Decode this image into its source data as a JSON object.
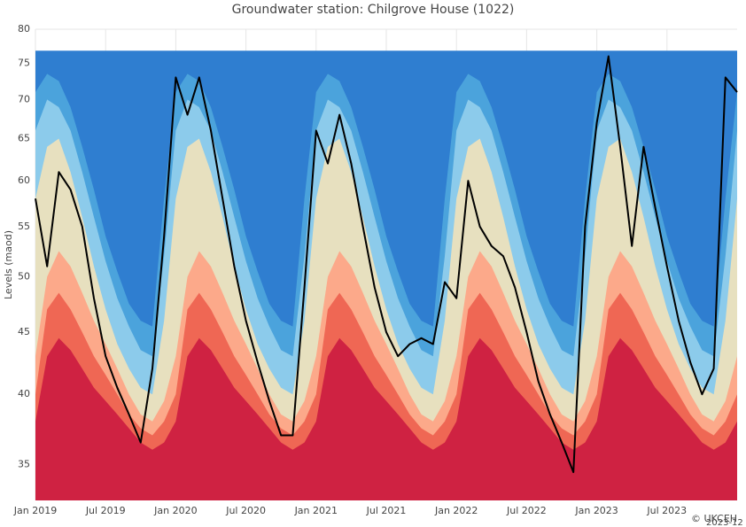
{
  "chart_data": {
    "type": "area-line",
    "title": "Groundwater station: Chilgrove House (1022)",
    "y_label": "Levels (maod)",
    "annotations": [
      "© UKCEH",
      "2023-12"
    ],
    "log_scale": true,
    "grid": true,
    "x": [
      "2019-01",
      "2019-02",
      "2019-03",
      "2019-04",
      "2019-05",
      "2019-06",
      "2019-07",
      "2019-08",
      "2019-09",
      "2019-10",
      "2019-11",
      "2019-12",
      "2020-01",
      "2020-02",
      "2020-03",
      "2020-04",
      "2020-05",
      "2020-06",
      "2020-07",
      "2020-08",
      "2020-09",
      "2020-10",
      "2020-11",
      "2020-12",
      "2021-01",
      "2021-02",
      "2021-03",
      "2021-04",
      "2021-05",
      "2021-06",
      "2021-07",
      "2021-08",
      "2021-09",
      "2021-10",
      "2021-11",
      "2021-12",
      "2022-01",
      "2022-02",
      "2022-03",
      "2022-04",
      "2022-05",
      "2022-06",
      "2022-07",
      "2022-08",
      "2022-09",
      "2022-10",
      "2022-11",
      "2022-12",
      "2023-01",
      "2023-02",
      "2023-03",
      "2023-04",
      "2023-05",
      "2023-06",
      "2023-07",
      "2023-08",
      "2023-09",
      "2023-10",
      "2023-11",
      "2023-12",
      "2024-01"
    ],
    "xlim": [
      "2019-01",
      "2024-01"
    ],
    "xticks": [
      {
        "value": "2019-01",
        "label": "Jan 2019"
      },
      {
        "value": "2019-07",
        "label": "Jul 2019"
      },
      {
        "value": "2020-01",
        "label": "Jan 2020"
      },
      {
        "value": "2020-07",
        "label": "Jul 2020"
      },
      {
        "value": "2021-01",
        "label": "Jan 2021"
      },
      {
        "value": "2021-07",
        "label": "Jul 2021"
      },
      {
        "value": "2022-01",
        "label": "Jan 2022"
      },
      {
        "value": "2022-07",
        "label": "Jul 2022"
      },
      {
        "value": "2023-01",
        "label": "Jan 2023"
      },
      {
        "value": "2023-07",
        "label": "Jul 2023"
      }
    ],
    "ylim": [
      32.7,
      80
    ],
    "yticks": [
      35,
      40,
      45,
      50,
      55,
      60,
      65,
      70,
      75,
      80
    ],
    "series": [
      {
        "color": "#2f7ed0",
        "values": [
          76.8,
          76.8,
          76.8,
          76.8,
          76.8,
          76.8,
          76.8,
          76.8,
          76.8,
          76.8,
          76.8,
          76.8,
          76.8,
          76.8,
          76.8,
          76.8,
          76.8,
          76.8,
          76.8,
          76.8,
          76.8,
          76.8,
          76.8,
          76.8,
          76.8,
          76.8,
          76.8,
          76.8,
          76.8,
          76.8,
          76.8,
          76.8,
          76.8,
          76.8,
          76.8,
          76.8,
          76.8,
          76.8,
          76.8,
          76.8,
          76.8,
          76.8,
          76.8,
          76.8,
          76.8,
          76.8,
          76.8,
          76.8,
          76.8,
          76.8,
          76.8,
          76.8,
          76.8,
          76.8,
          76.8,
          76.8,
          76.8,
          76.8,
          76.8,
          76.8,
          76.8
        ]
      },
      {
        "color": "#4ba3dc",
        "values": [
          71,
          73.5,
          72.5,
          69,
          64,
          59,
          54,
          50.5,
          47.5,
          46,
          45.5,
          58,
          71,
          73.5,
          72.5,
          69,
          64,
          59,
          54,
          50.5,
          47.5,
          46,
          45.5,
          58,
          71,
          73.5,
          72.5,
          69,
          64,
          59,
          54,
          50.5,
          47.5,
          46,
          45.5,
          58,
          71,
          73.5,
          72.5,
          69,
          64,
          59,
          54,
          50.5,
          47.5,
          46,
          45.5,
          58,
          71,
          73.5,
          72.5,
          69,
          64,
          59,
          54,
          50.5,
          47.5,
          46,
          45.5,
          58,
          71
        ]
      },
      {
        "color": "#8ccbeb",
        "values": [
          66,
          70,
          69,
          66,
          61,
          56,
          51.5,
          48,
          45.5,
          43.5,
          43,
          52,
          66,
          70,
          69,
          66,
          61,
          56,
          51.5,
          48,
          45.5,
          43.5,
          43,
          52,
          66,
          70,
          69,
          66,
          61,
          56,
          51.5,
          48,
          45.5,
          43.5,
          43,
          52,
          66,
          70,
          69,
          66,
          61,
          56,
          51.5,
          48,
          45.5,
          43.5,
          43,
          52,
          66,
          70,
          69,
          66,
          61,
          56,
          51.5,
          48,
          45.5,
          43.5,
          43,
          52,
          66
        ]
      },
      {
        "color": "#e7e0bf",
        "values": [
          58,
          64,
          65,
          61,
          56,
          51,
          47,
          44,
          42,
          40.5,
          40,
          46,
          58,
          64,
          65,
          61,
          56,
          51,
          47,
          44,
          42,
          40.5,
          40,
          46,
          58,
          64,
          65,
          61,
          56,
          51,
          47,
          44,
          42,
          40.5,
          40,
          46,
          58,
          64,
          65,
          61,
          56,
          51,
          47,
          44,
          42,
          40.5,
          40,
          46,
          58,
          64,
          65,
          61,
          56,
          51,
          47,
          44,
          42,
          40.5,
          40,
          46,
          58
        ]
      },
      {
        "color": "#fca98a",
        "values": [
          43,
          50,
          52.5,
          51,
          48.5,
          46,
          44,
          42,
          40,
          38.5,
          38,
          39.5,
          43,
          50,
          52.5,
          51,
          48.5,
          46,
          44,
          42,
          40,
          38.5,
          38,
          39.5,
          43,
          50,
          52.5,
          51,
          48.5,
          46,
          44,
          42,
          40,
          38.5,
          38,
          39.5,
          43,
          50,
          52.5,
          51,
          48.5,
          46,
          44,
          42,
          40,
          38.5,
          38,
          39.5,
          43,
          50,
          52.5,
          51,
          48.5,
          46,
          44,
          42,
          40,
          38.5,
          38,
          39.5,
          43
        ]
      },
      {
        "color": "#ef6754",
        "values": [
          40,
          47,
          48.5,
          47,
          45,
          43,
          41.5,
          40,
          38.5,
          37.5,
          37,
          38,
          40,
          47,
          48.5,
          47,
          45,
          43,
          41.5,
          40,
          38.5,
          37.5,
          37,
          38,
          40,
          47,
          48.5,
          47,
          45,
          43,
          41.5,
          40,
          38.5,
          37.5,
          37,
          38,
          40,
          47,
          48.5,
          47,
          45,
          43,
          41.5,
          40,
          38.5,
          37.5,
          37,
          38,
          40,
          47,
          48.5,
          47,
          45,
          43,
          41.5,
          40,
          38.5,
          37.5,
          37,
          38,
          40
        ]
      },
      {
        "color": "#cf2242",
        "values": [
          38,
          43,
          44.5,
          43.5,
          42,
          40.5,
          39.5,
          38.5,
          37.5,
          36.5,
          36,
          36.5,
          38,
          43,
          44.5,
          43.5,
          42,
          40.5,
          39.5,
          38.5,
          37.5,
          36.5,
          36,
          36.5,
          38,
          43,
          44.5,
          43.5,
          42,
          40.5,
          39.5,
          38.5,
          37.5,
          36.5,
          36,
          36.5,
          38,
          43,
          44.5,
          43.5,
          42,
          40.5,
          39.5,
          38.5,
          37.5,
          36.5,
          36,
          36.5,
          38,
          43,
          44.5,
          43.5,
          42,
          40.5,
          39.5,
          38.5,
          37.5,
          36.5,
          36,
          36.5,
          38
        ]
      },
      {
        "color": "#000000",
        "line": true,
        "values": [
          58,
          51,
          61,
          59,
          55,
          48,
          43,
          40.5,
          38.5,
          36.5,
          42,
          54,
          73,
          68,
          73,
          66,
          58,
          51,
          46,
          42.5,
          39.5,
          37,
          37,
          49,
          66,
          62,
          68,
          62,
          55,
          49,
          45,
          43,
          44,
          44.5,
          44,
          49.5,
          48,
          60,
          55,
          53,
          52,
          49,
          45,
          41,
          38.5,
          36.5,
          34.5,
          55,
          67,
          76,
          64,
          53,
          64,
          57,
          51,
          46,
          42.5,
          40,
          42,
          73,
          71
        ]
      }
    ]
  }
}
